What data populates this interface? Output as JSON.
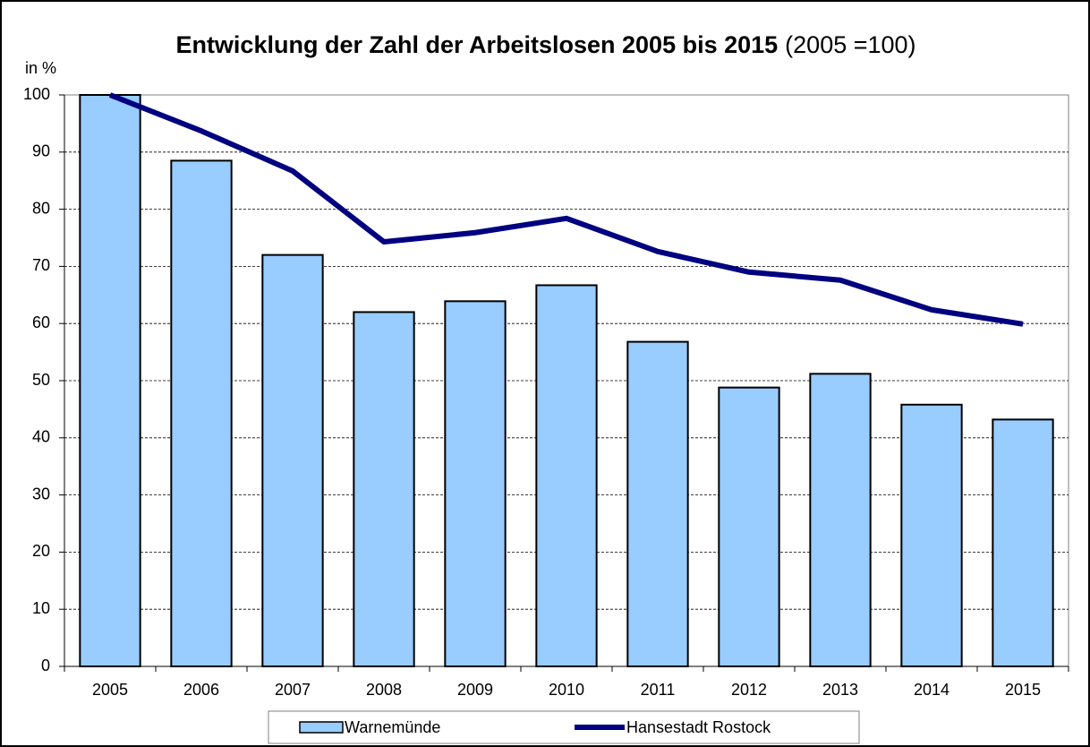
{
  "chart_data": {
    "type": "bar",
    "title": "Entwicklung der Zahl der Arbeitslosen 2005 bis 2015",
    "subtitle": "(2005 =100)",
    "y_label": "in %",
    "categories": [
      "2005",
      "2006",
      "2007",
      "2008",
      "2009",
      "2010",
      "2011",
      "2012",
      "2013",
      "2014",
      "2015"
    ],
    "series": [
      {
        "name": "Warnemünde",
        "type": "bar",
        "color": "#99ccff",
        "values": [
          100,
          88.5,
          72,
          62,
          63.9,
          66.7,
          56.8,
          48.8,
          51.2,
          45.8,
          43.2
        ]
      },
      {
        "name": "Hansestadt Rostock",
        "type": "line",
        "color": "#000080",
        "values": [
          100,
          93.7,
          86.7,
          74.3,
          75.9,
          78.4,
          72.6,
          69.0,
          67.6,
          62.4,
          59.9
        ]
      }
    ],
    "ylim": [
      0,
      100
    ],
    "yticks": [
      0,
      10,
      20,
      30,
      40,
      50,
      60,
      70,
      80,
      90,
      100
    ],
    "grid": true,
    "legend": "bottom"
  }
}
